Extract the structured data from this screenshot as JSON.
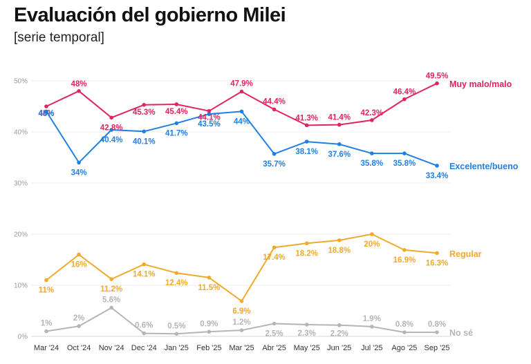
{
  "header": {
    "title": "Evaluación del gobierno Milei",
    "subtitle": "[serie temporal]"
  },
  "chart_data": {
    "type": "line",
    "title": "Evaluación del gobierno Milei",
    "subtitle": "[serie temporal]",
    "xlabel": "",
    "ylabel": "",
    "ylim": [
      0,
      50
    ],
    "y_ticks": [
      "0%",
      "10%",
      "20%",
      "30%",
      "40%",
      "50%"
    ],
    "grid": true,
    "legend": "direct labels at right end of lines",
    "categories": [
      "Mar '24",
      "Oct '24",
      "Nov '24",
      "Dec '24",
      "Jan '25",
      "Feb '25",
      "Mar '25",
      "Abr '25",
      "May '25",
      "Jun '25",
      "Jul '25",
      "Ago '25",
      "Sep '25"
    ],
    "series": [
      {
        "name": "Muy malo/malo",
        "color": "#e0245e",
        "values": [
          45,
          48,
          42.8,
          45.3,
          45.4,
          44.1,
          47.9,
          44.4,
          41.3,
          41.4,
          42.3,
          46.4,
          49.5
        ],
        "labels": [
          "45%",
          "48%",
          "42.8%",
          "45.3%",
          "45.4%",
          "44.1%",
          "47.9%",
          "44.4%",
          "41.3%",
          "41.4%",
          "42.3%",
          "46.4%",
          "49.5%"
        ]
      },
      {
        "name": "Excelente/bueno",
        "color": "#1f7fe5",
        "values": [
          44,
          34,
          40.4,
          40.1,
          41.7,
          43.5,
          44,
          35.7,
          38.1,
          37.6,
          35.8,
          35.8,
          33.4
        ],
        "labels": [
          "44%",
          "34%",
          "40.4%",
          "40.1%",
          "41.7%",
          "43.5%",
          "44%",
          "35.7%",
          "38.1%",
          "37.6%",
          "35.8%",
          "35.8%",
          "33.4%"
        ]
      },
      {
        "name": "Regular",
        "color": "#f0a92a",
        "values": [
          11,
          16,
          11.2,
          14.1,
          12.4,
          11.5,
          6.9,
          17.4,
          18.2,
          18.8,
          20,
          16.9,
          16.3
        ],
        "labels": [
          "11%",
          "16%",
          "11.2%",
          "14.1%",
          "12.4%",
          "11.5%",
          "6.9%",
          "17.4%",
          "18.2%",
          "18.8%",
          "20%",
          "16.9%",
          "16.3%"
        ]
      },
      {
        "name": "No sé",
        "color": "#b5b5b5",
        "values": [
          1,
          2,
          5.6,
          0.6,
          0.5,
          0.9,
          1.2,
          2.5,
          2.3,
          2.2,
          1.9,
          0.8,
          0.8
        ],
        "labels": [
          "1%",
          "2%",
          "5.6%",
          "0.6%",
          "0.5%",
          "0.9%",
          "1.2%",
          "2.5%",
          "2.3%",
          "2.2%",
          "1.9%",
          "0.8%",
          "0.8%"
        ]
      }
    ]
  }
}
